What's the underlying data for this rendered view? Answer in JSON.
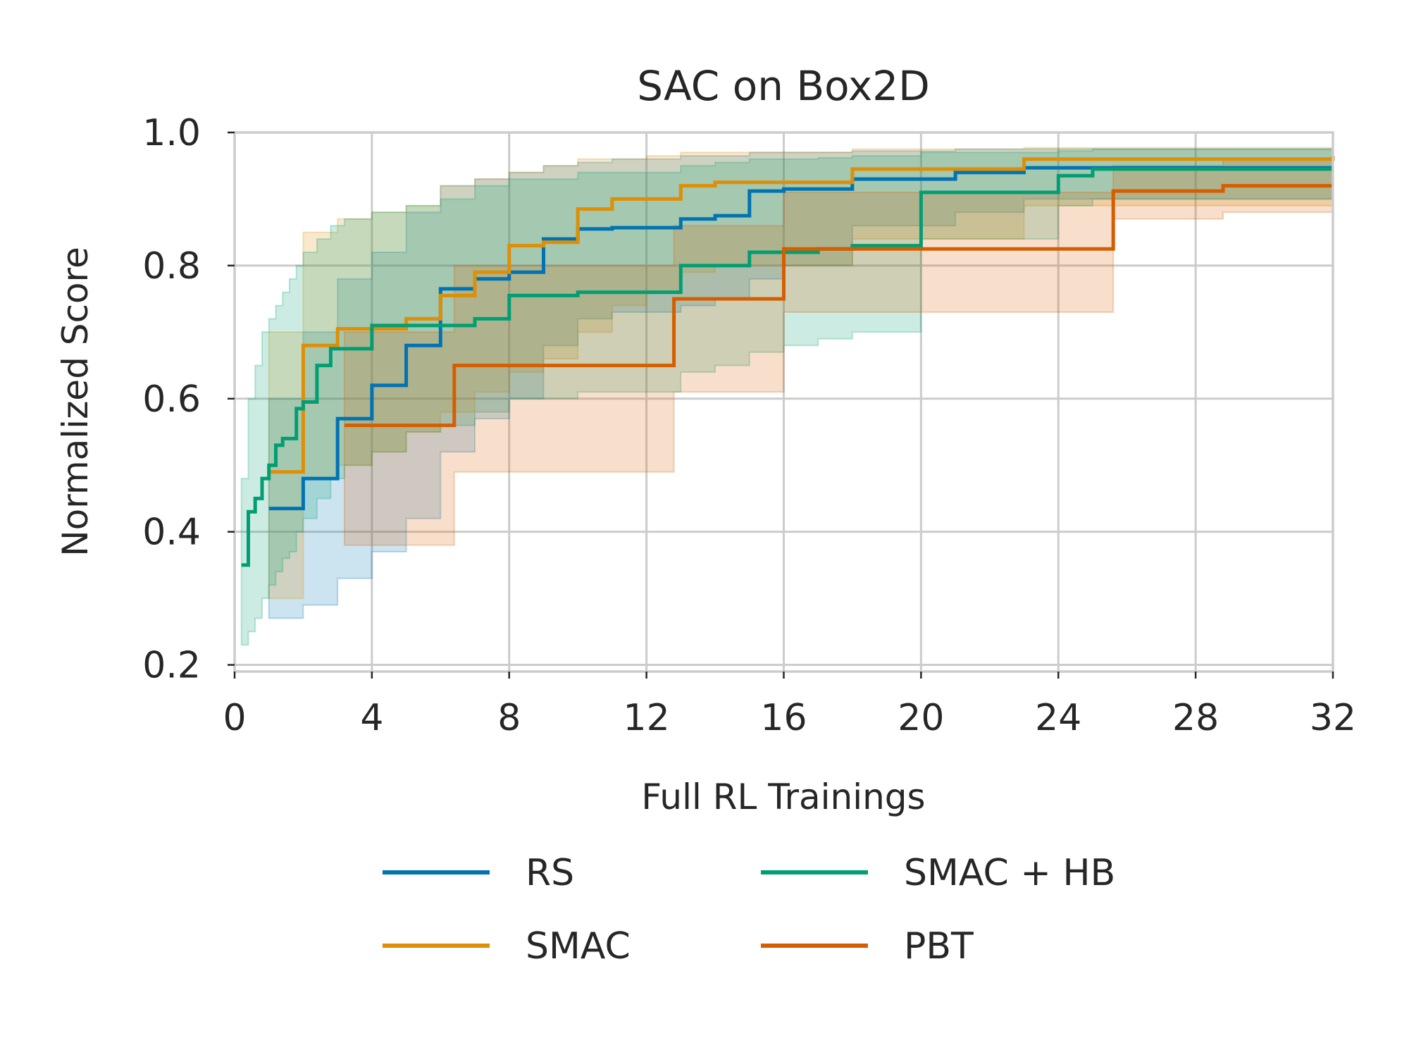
{
  "chart_data": {
    "type": "line",
    "step": true,
    "title": "SAC on Box2D",
    "xlabel": "Full RL Trainings",
    "ylabel": "Normalized Score",
    "xlim": [
      0,
      32
    ],
    "ylim": [
      0.19,
      1.0
    ],
    "xticks": [
      0,
      4,
      8,
      12,
      16,
      20,
      24,
      28,
      32
    ],
    "yticks": [
      0.2,
      0.4,
      0.6,
      0.8,
      1.0
    ],
    "xtick_labels": [
      "0",
      "4",
      "8",
      "12",
      "16",
      "20",
      "24",
      "28",
      "32"
    ],
    "ytick_labels": [
      "0.2",
      "0.4",
      "0.6",
      "0.8",
      "1.0"
    ],
    "grid": true,
    "legend": {
      "placement": "below",
      "columns": 2
    },
    "series": [
      {
        "name": "RS",
        "color": "#0173b2",
        "x": [
          1,
          2,
          3,
          4,
          5,
          6,
          7,
          8,
          9,
          10,
          11,
          13,
          14,
          15,
          16,
          18,
          21,
          23,
          32
        ],
        "y": [
          0.435,
          0.48,
          0.57,
          0.62,
          0.68,
          0.765,
          0.78,
          0.79,
          0.84,
          0.855,
          0.857,
          0.87,
          0.875,
          0.912,
          0.915,
          0.93,
          0.94,
          0.947,
          0.947
        ],
        "lower": [
          0.27,
          0.29,
          0.33,
          0.37,
          0.42,
          0.52,
          0.57,
          0.6,
          0.68,
          0.72,
          0.73,
          0.74,
          0.75,
          0.78,
          0.8,
          0.86,
          0.88,
          0.9,
          0.91
        ],
        "upper": [
          0.6,
          0.7,
          0.78,
          0.82,
          0.88,
          0.92,
          0.93,
          0.94,
          0.95,
          0.955,
          0.96,
          0.965,
          0.965,
          0.97,
          0.97,
          0.972,
          0.975,
          0.975,
          0.977
        ]
      },
      {
        "name": "SMAC",
        "color": "#de8f05",
        "x": [
          1,
          2,
          3,
          4,
          5,
          6,
          7,
          8,
          9,
          10,
          11,
          12,
          13,
          14,
          18,
          23,
          32
        ],
        "y": [
          0.49,
          0.68,
          0.705,
          0.705,
          0.72,
          0.755,
          0.79,
          0.83,
          0.835,
          0.885,
          0.9,
          0.9,
          0.92,
          0.925,
          0.945,
          0.96,
          0.965
        ],
        "lower": [
          0.3,
          0.48,
          0.5,
          0.52,
          0.55,
          0.58,
          0.61,
          0.64,
          0.66,
          0.7,
          0.74,
          0.76,
          0.79,
          0.8,
          0.84,
          0.89,
          0.9
        ],
        "upper": [
          0.7,
          0.85,
          0.87,
          0.88,
          0.89,
          0.92,
          0.93,
          0.94,
          0.95,
          0.96,
          0.96,
          0.965,
          0.97,
          0.97,
          0.975,
          0.977,
          0.978
        ]
      },
      {
        "name": "SMAC + HB",
        "color": "#029e73",
        "x": [
          0.2,
          0.4,
          0.6,
          0.8,
          1,
          1.2,
          1.4,
          1.6,
          1.8,
          2,
          2.4,
          2.8,
          3.2,
          4,
          5,
          6,
          7,
          8,
          10,
          13,
          14,
          15,
          16,
          17,
          18,
          20,
          24,
          25,
          32
        ],
        "y": [
          0.35,
          0.43,
          0.45,
          0.48,
          0.5,
          0.53,
          0.54,
          0.54,
          0.585,
          0.595,
          0.65,
          0.675,
          0.675,
          0.71,
          0.71,
          0.71,
          0.72,
          0.755,
          0.76,
          0.8,
          0.8,
          0.82,
          0.82,
          0.825,
          0.83,
          0.91,
          0.935,
          0.945,
          0.945
        ],
        "lower": [
          0.23,
          0.25,
          0.27,
          0.3,
          0.32,
          0.34,
          0.36,
          0.37,
          0.4,
          0.42,
          0.45,
          0.48,
          0.5,
          0.52,
          0.55,
          0.56,
          0.58,
          0.6,
          0.61,
          0.64,
          0.65,
          0.67,
          0.68,
          0.69,
          0.7,
          0.84,
          0.89,
          0.9,
          0.91
        ],
        "upper": [
          0.48,
          0.6,
          0.65,
          0.7,
          0.72,
          0.74,
          0.76,
          0.78,
          0.8,
          0.82,
          0.84,
          0.86,
          0.87,
          0.88,
          0.89,
          0.9,
          0.92,
          0.93,
          0.94,
          0.95,
          0.955,
          0.96,
          0.96,
          0.962,
          0.965,
          0.97,
          0.972,
          0.975,
          0.976
        ]
      },
      {
        "name": "PBT",
        "color": "#d55e00",
        "x": [
          3.2,
          6.4,
          12.8,
          16,
          25.6,
          28.8,
          32
        ],
        "y": [
          0.56,
          0.65,
          0.75,
          0.825,
          0.912,
          0.92,
          0.92
        ],
        "lower": [
          0.38,
          0.49,
          0.61,
          0.73,
          0.87,
          0.88,
          0.88
        ],
        "upper": [
          0.7,
          0.8,
          0.86,
          0.91,
          0.95,
          0.96,
          0.965
        ]
      }
    ]
  }
}
